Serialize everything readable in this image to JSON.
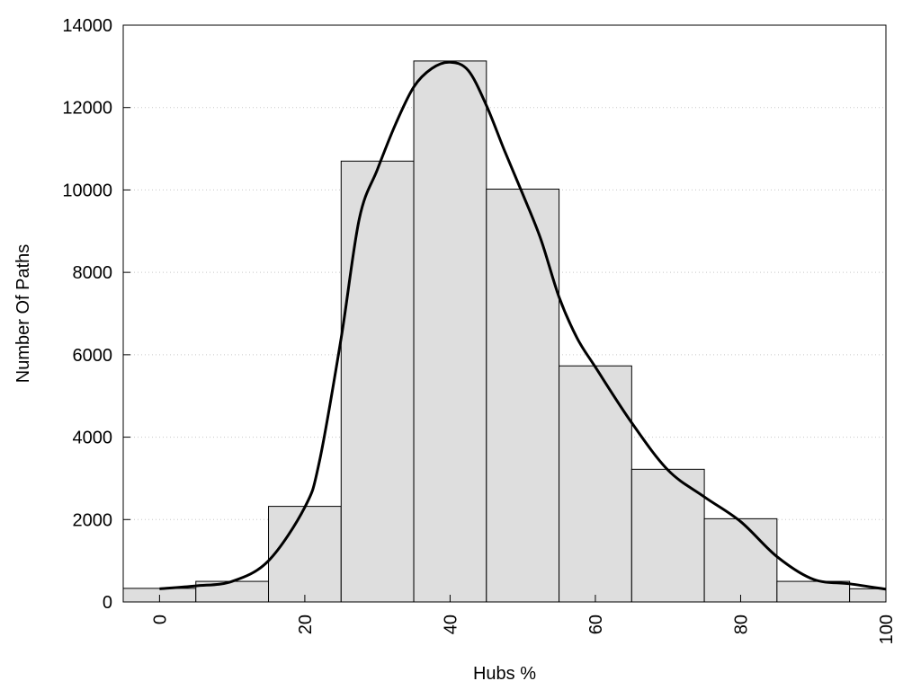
{
  "chart_data": {
    "type": "bar",
    "title": "",
    "xlabel": "Hubs %",
    "ylabel": "Number Of Paths",
    "xlim": [
      -5,
      100
    ],
    "ylim": [
      0,
      14000
    ],
    "x_ticks": [
      0,
      20,
      40,
      60,
      80,
      100
    ],
    "y_ticks": [
      0,
      2000,
      4000,
      6000,
      8000,
      10000,
      12000,
      14000
    ],
    "grid": "horizontal dotted",
    "bin_width": 10,
    "bins": [
      {
        "x": 0,
        "value": 330
      },
      {
        "x": 10,
        "value": 500
      },
      {
        "x": 20,
        "value": 2320
      },
      {
        "x": 30,
        "value": 10700
      },
      {
        "x": 40,
        "value": 13130
      },
      {
        "x": 50,
        "value": 10020
      },
      {
        "x": 60,
        "value": 5730
      },
      {
        "x": 70,
        "value": 3220
      },
      {
        "x": 80,
        "value": 2020
      },
      {
        "x": 90,
        "value": 500
      },
      {
        "x": 100,
        "value": 320
      }
    ],
    "curve": {
      "x": [
        0,
        5,
        10,
        15,
        20,
        22,
        25,
        27.5,
        30,
        32.5,
        35,
        37.5,
        40,
        42.5,
        45,
        47.5,
        50,
        52.5,
        55,
        57.5,
        60,
        65,
        70,
        75,
        80,
        85,
        90,
        95,
        100
      ],
      "y": [
        320,
        390,
        500,
        1000,
        2300,
        3400,
        6400,
        9300,
        10500,
        11600,
        12500,
        12950,
        13100,
        12900,
        12050,
        10950,
        9900,
        8800,
        7400,
        6400,
        5700,
        4350,
        3200,
        2550,
        1950,
        1100,
        550,
        440,
        310
      ]
    },
    "colors": {
      "bar_fill": "#dedede",
      "bar_stroke": "#000000",
      "curve": "#000000",
      "grid": "#c8c8c8"
    }
  }
}
